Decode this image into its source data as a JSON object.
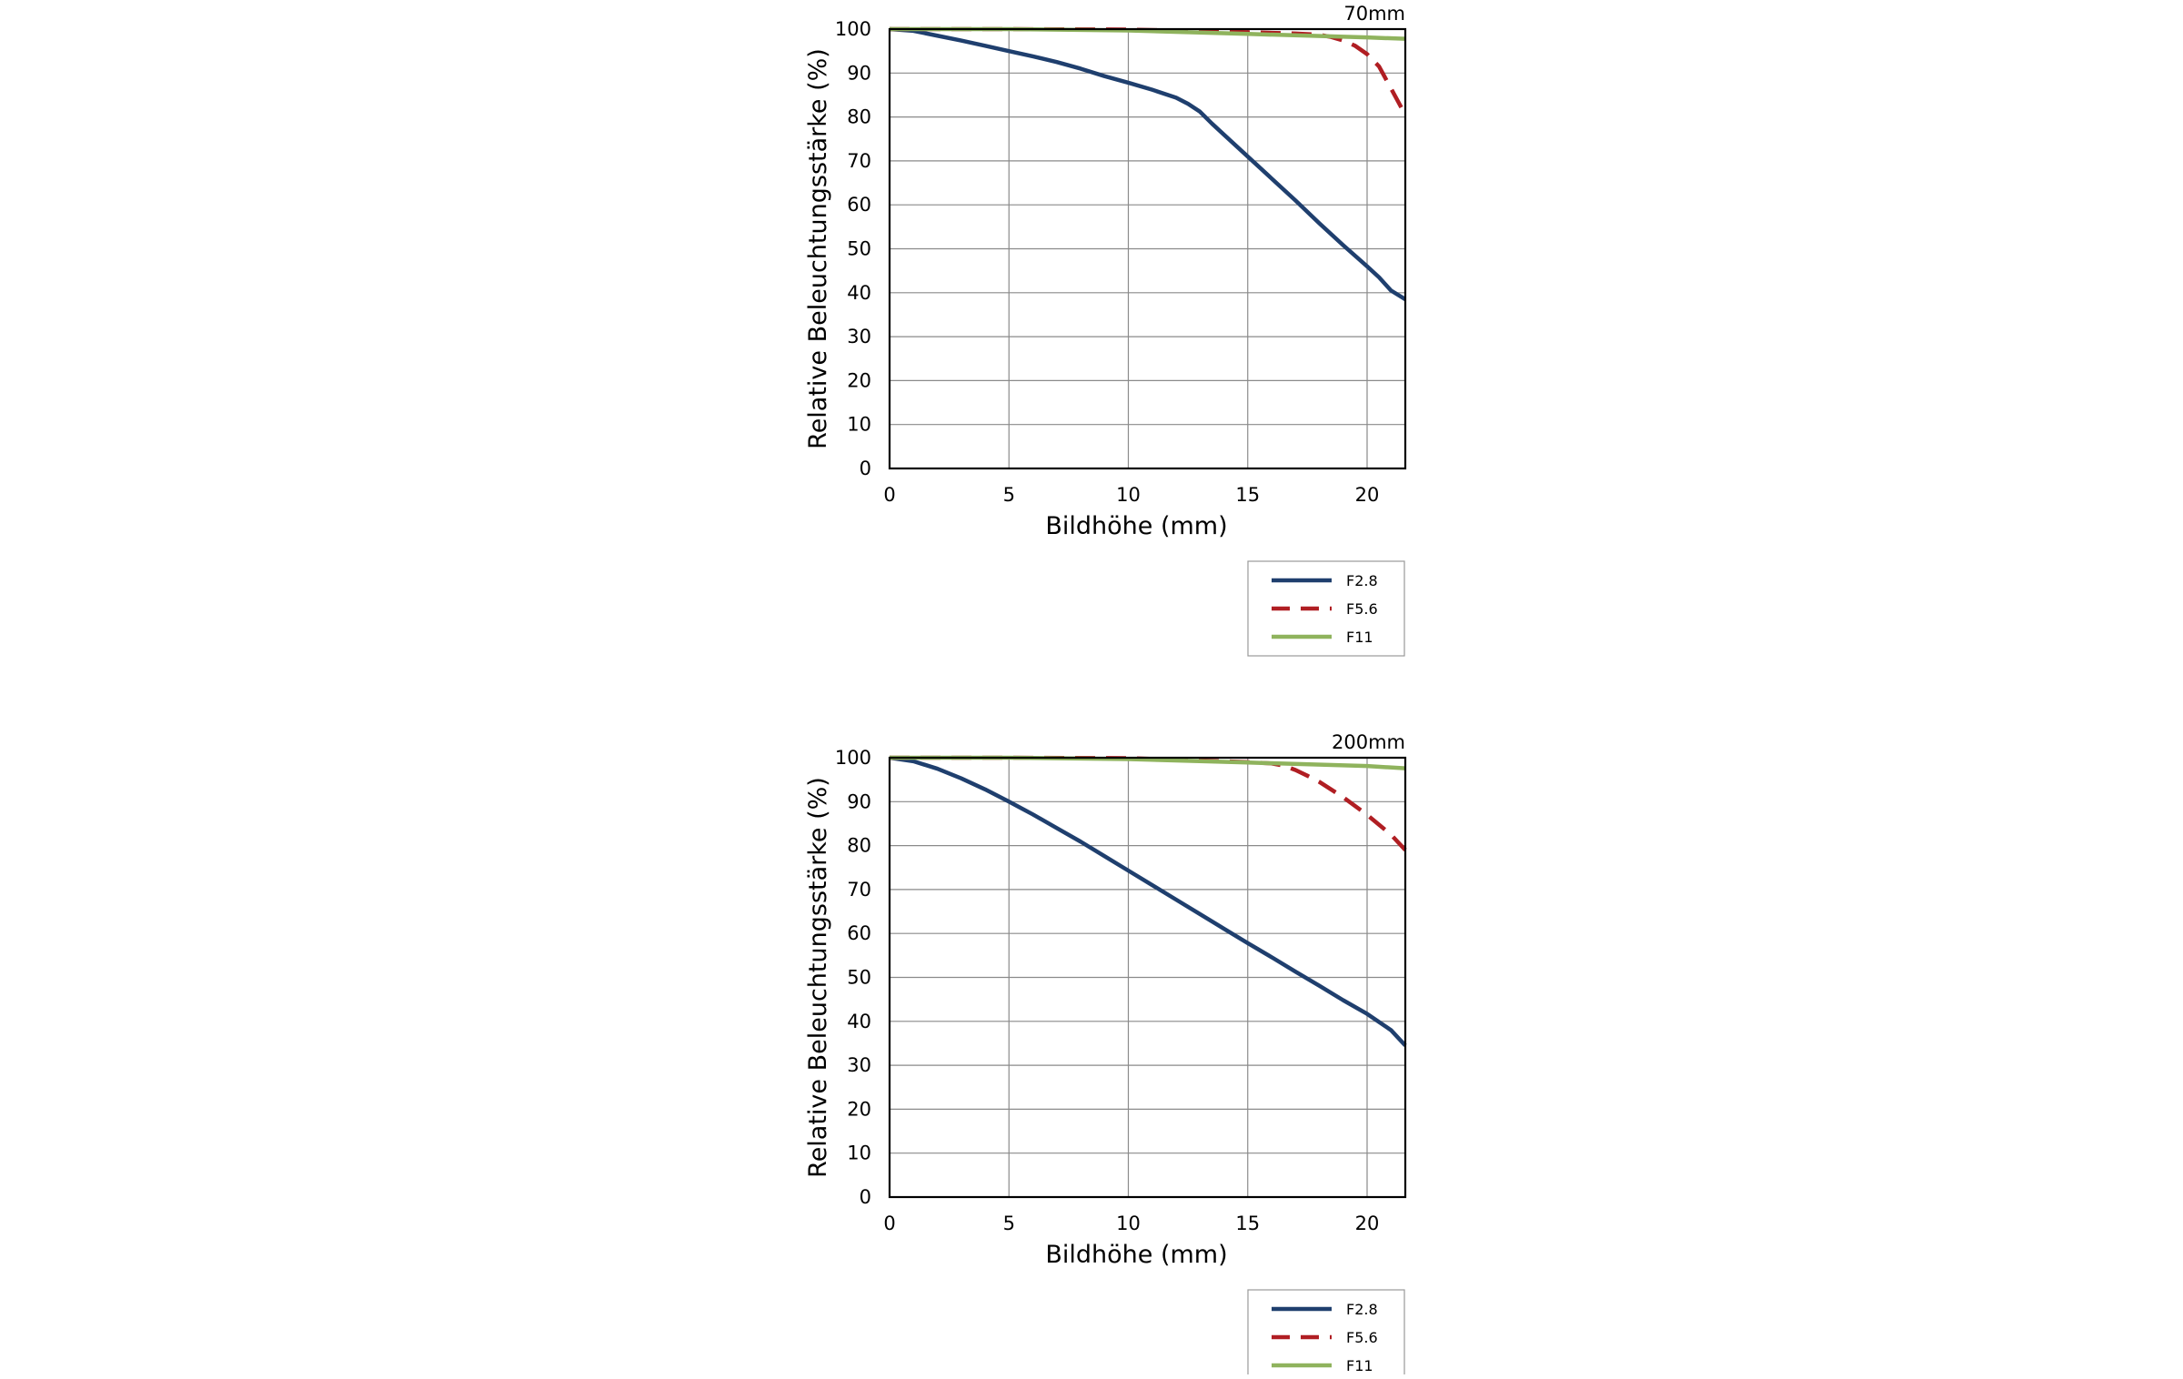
{
  "chart_data": [
    {
      "type": "line",
      "title": "70mm",
      "xlabel": "Bildhöhe (mm)",
      "ylabel": "Relative Beleuchtungsstärke (%)",
      "xlim": [
        0,
        21.6
      ],
      "ylim": [
        0,
        100
      ],
      "xticks": [
        0,
        5,
        10,
        15,
        20
      ],
      "yticks": [
        0,
        10,
        20,
        30,
        40,
        50,
        60,
        70,
        80,
        90,
        100
      ],
      "grid": true,
      "legend_position": "below-right",
      "series": [
        {
          "name": "F2.8",
          "color": "#1f3f6e",
          "style": "solid",
          "x": [
            0,
            1,
            2,
            3,
            4,
            5,
            6,
            7,
            8,
            9,
            10,
            11,
            12,
            12.5,
            13,
            13.5,
            14,
            15,
            16,
            17,
            18,
            19,
            20,
            20.5,
            21,
            21.6
          ],
          "y": [
            100,
            99.6,
            98.5,
            97.4,
            96.2,
            95.0,
            93.8,
            92.5,
            91.0,
            89.3,
            87.8,
            86.2,
            84.4,
            83.0,
            81.2,
            78.5,
            76.0,
            71.0,
            66.0,
            61.0,
            55.8,
            50.8,
            46.0,
            43.5,
            40.5,
            38.5
          ]
        },
        {
          "name": "F5.6",
          "color": "#b01e23",
          "style": "dashed",
          "x": [
            0,
            5,
            10,
            15,
            17,
            18,
            18.5,
            19,
            19.5,
            20,
            20.5,
            21,
            21.6
          ],
          "y": [
            100,
            100,
            99.9,
            99.3,
            99.0,
            98.7,
            98.2,
            97.4,
            96.2,
            94.3,
            91.5,
            86.5,
            80.5
          ]
        },
        {
          "name": "F11",
          "color": "#8fb35d",
          "style": "solid",
          "x": [
            0,
            5,
            10,
            15,
            20,
            21.6
          ],
          "y": [
            100,
            100,
            99.7,
            98.9,
            98.1,
            97.8
          ]
        }
      ]
    },
    {
      "type": "line",
      "title": "200mm",
      "xlabel": "Bildhöhe (mm)",
      "ylabel": "Relative Beleuchtungsstärke (%)",
      "xlim": [
        0,
        21.6
      ],
      "ylim": [
        0,
        100
      ],
      "xticks": [
        0,
        5,
        10,
        15,
        20
      ],
      "yticks": [
        0,
        10,
        20,
        30,
        40,
        50,
        60,
        70,
        80,
        90,
        100
      ],
      "grid": true,
      "legend_position": "below-right",
      "series": [
        {
          "name": "F2.8",
          "color": "#1f3f6e",
          "style": "solid",
          "x": [
            0,
            1,
            2,
            3,
            4,
            5,
            6,
            7,
            8,
            9,
            10,
            11,
            12,
            13,
            14,
            15,
            16,
            17,
            18,
            19,
            20,
            21,
            21.6
          ],
          "y": [
            100,
            99.2,
            97.5,
            95.3,
            92.8,
            90.0,
            87.1,
            84.0,
            80.9,
            77.6,
            74.3,
            71.0,
            67.7,
            64.4,
            61.1,
            57.8,
            54.6,
            51.3,
            48.1,
            44.8,
            41.7,
            38.0,
            34.5
          ]
        },
        {
          "name": "F5.6",
          "color": "#b01e23",
          "style": "dashed",
          "x": [
            0,
            5,
            10,
            15,
            16,
            16.5,
            17,
            17.5,
            18,
            19,
            20,
            21,
            21.6
          ],
          "y": [
            100,
            100,
            99.9,
            99.0,
            98.7,
            98.2,
            97.2,
            95.9,
            94.5,
            91.0,
            87.0,
            82.5,
            79.0
          ]
        },
        {
          "name": "F11",
          "color": "#8fb35d",
          "style": "solid",
          "x": [
            0,
            5,
            10,
            15,
            20,
            21.6
          ],
          "y": [
            100,
            100,
            99.7,
            98.9,
            98.1,
            97.6
          ]
        }
      ]
    }
  ]
}
